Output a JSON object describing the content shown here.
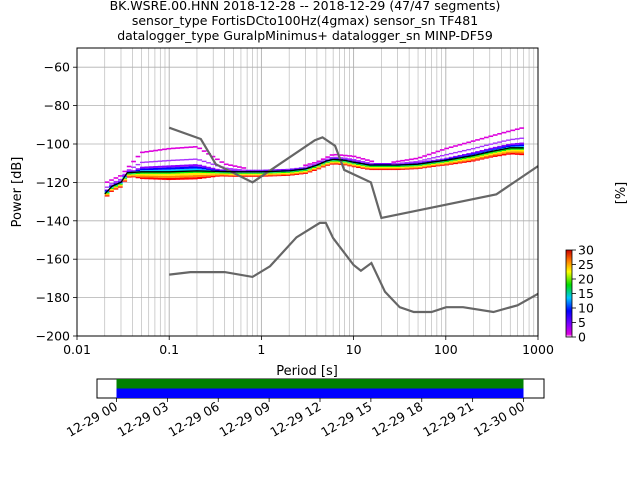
{
  "header": {
    "line1": "BK.WSRE.00.HNN   2018-12-28 -- 2018-12-29  (47/47 segments)",
    "line2": "sensor_type FortisDCto100Hz(4gmax) sensor_sn TF481",
    "line3": "datalogger_type GuralpMinimus+ datalogger_sn MINP-DF59"
  },
  "chart_data": [
    {
      "type": "heatmap",
      "title": "",
      "xlabel": "Period [s]",
      "ylabel": "Power [dB]",
      "x_scale": "log",
      "xlim": [
        0.01,
        1000
      ],
      "ylim": [
        -200,
        -50
      ],
      "x_ticks": [
        0.01,
        0.1,
        1,
        10,
        100,
        1000
      ],
      "x_tick_labels": [
        "0.01",
        "0.1",
        "1",
        "10",
        "100",
        "1000"
      ],
      "y_ticks": [
        -200,
        -180,
        -160,
        -140,
        -120,
        -100,
        -80,
        -60
      ],
      "y_tick_labels": [
        "−200",
        "−180",
        "−160",
        "−140",
        "−120",
        "−100",
        "−80",
        "−60"
      ],
      "grid": true,
      "colorbar": {
        "label": "[%]",
        "range": [
          0,
          30
        ],
        "ticks": [
          0,
          5,
          10,
          15,
          20,
          25,
          30
        ],
        "tick_labels": [
          "0",
          "5",
          "10",
          "15",
          "20",
          "25",
          "30"
        ]
      },
      "noise_models": [
        {
          "name": "",
          "color": "#666666",
          "x": [
            0.1,
            0.22,
            0.32,
            0.8,
            3.8,
            4.6,
            6.3,
            7.9,
            15.4,
            20,
            354,
            1000
          ],
          "y": [
            -91.5,
            -97.4,
            -110.5,
            -120,
            -98.0,
            -96.5,
            -101.0,
            -113.5,
            -120.0,
            -138.5,
            -126.2,
            -111.5
          ]
        },
        {
          "name": "",
          "color": "#666666",
          "x": [
            0.1,
            0.17,
            0.4,
            0.8,
            1.24,
            2.4,
            4.3,
            5.0,
            6.0,
            10,
            12,
            15.6,
            21.9,
            31.6,
            45,
            70,
            101,
            154,
            328,
            600,
            1000
          ],
          "y": [
            -168.0,
            -166.7,
            -166.7,
            -169.2,
            -163.7,
            -148.6,
            -141.1,
            -141.1,
            -149.0,
            -163.0,
            -166.0,
            -162.0,
            -177.0,
            -185.0,
            -187.5,
            -187.5,
            -185.0,
            -185.0,
            -187.5,
            -184.0,
            -178.0
          ]
        }
      ],
      "median_curve": {
        "color": "#000000",
        "x": [
          0.02,
          0.024,
          0.03,
          0.035,
          0.05,
          0.1,
          0.2,
          0.5,
          1,
          2,
          3,
          4,
          5,
          6,
          8,
          10,
          15,
          20,
          30,
          50,
          70,
          100,
          200,
          300,
          500,
          700
        ],
        "y": [
          -126,
          -122,
          -120,
          -115,
          -114.5,
          -114.5,
          -114,
          -114.5,
          -114.5,
          -114,
          -113,
          -111,
          -109,
          -108,
          -108.5,
          -109.5,
          -111,
          -111,
          -111,
          -110.5,
          -109.5,
          -108.5,
          -106,
          -104,
          -102,
          -102
        ]
      },
      "heatmap_upper_envelope": {
        "color": "#dd00dd",
        "x": [
          0.02,
          0.03,
          0.05,
          0.1,
          0.2,
          0.4,
          1,
          2,
          4,
          6,
          10,
          20,
          50,
          100,
          200,
          400,
          700
        ],
        "y": [
          -120,
          -116,
          -104,
          -102,
          -101,
          -110,
          -114,
          -113,
          -109,
          -105,
          -106,
          -110,
          -107,
          -102,
          -98,
          -94,
          -91
        ]
      }
    },
    {
      "type": "timeline",
      "x_tick_labels": [
        "12-29 00",
        "12-29 03",
        "12-29 06",
        "12-29 09",
        "12-29 12",
        "12-29 15",
        "12-29 18",
        "12-29 21",
        "12-30 00"
      ],
      "bands": [
        {
          "color": "#008000",
          "start": "12-29 00",
          "end": "12-30 00"
        },
        {
          "color": "#0000ff",
          "start": "12-29 00",
          "end": "12-30 00"
        }
      ]
    }
  ]
}
